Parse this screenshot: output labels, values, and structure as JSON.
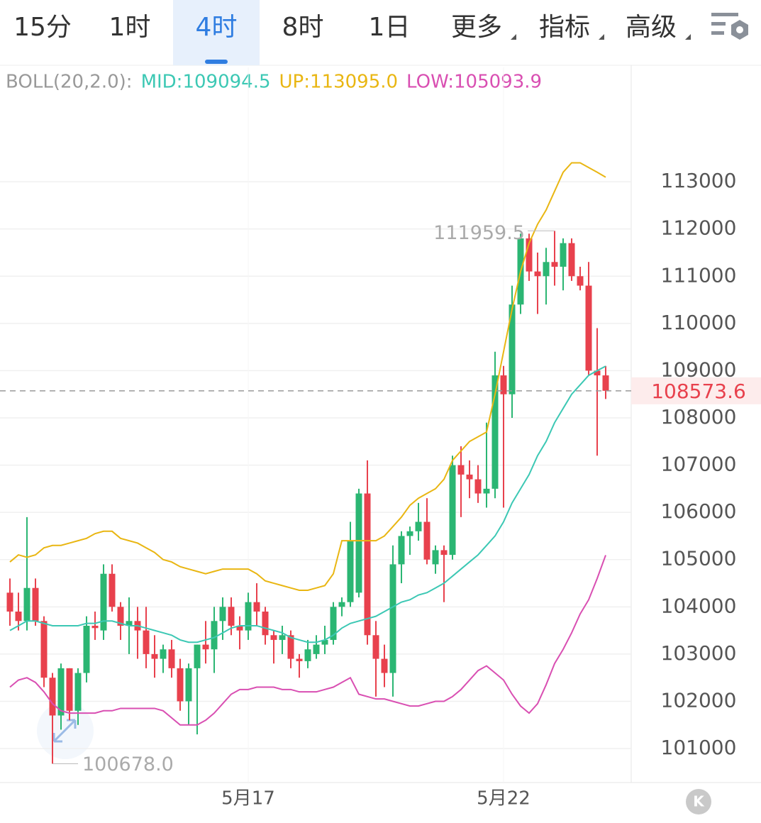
{
  "tabs": [
    "15分",
    "1时",
    "4时",
    "8时",
    "1日",
    "更多",
    "指标",
    "高级"
  ],
  "selected_tab": "4时",
  "k_button": "K",
  "chart_data": {
    "type": "candlestick",
    "indicator_title": "BOLL(20,2.0):",
    "categories": [
      null,
      null,
      null,
      null,
      null,
      null,
      null,
      null,
      null,
      null,
      null,
      null,
      null,
      null,
      null,
      null,
      null,
      null,
      null,
      null,
      null,
      null,
      null,
      null,
      null,
      null,
      null,
      null,
      "5月17",
      null,
      null,
      null,
      null,
      null,
      null,
      null,
      null,
      null,
      null,
      null,
      null,
      null,
      null,
      null,
      null,
      null,
      null,
      null,
      null,
      null,
      null,
      null,
      null,
      null,
      null,
      null,
      null,
      null,
      "5月22",
      null,
      null,
      null,
      null,
      null,
      null,
      null,
      null,
      null,
      null,
      null,
      null
    ],
    "open": [
      104300,
      103900,
      103700,
      104400,
      103700,
      102500,
      101700,
      102700,
      101800,
      102600,
      103600,
      103500,
      104700,
      104000,
      103600,
      103700,
      103500,
      103000,
      102900,
      103100,
      102700,
      102000,
      102700,
      103200,
      103100,
      103700,
      104000,
      103600,
      103500,
      104100,
      103900,
      103400,
      103300,
      103400,
      102900,
      102850,
      103000,
      103200,
      103300,
      104000,
      104100,
      104300,
      106400,
      103400,
      102900,
      102600,
      104900,
      105500,
      105600,
      105800,
      104900,
      105200,
      105100,
      107000,
      106800,
      106700,
      106400,
      106500,
      108900,
      108500,
      110400,
      111800,
      111100,
      111000,
      111300,
      111200,
      111700,
      111000,
      110800,
      109000,
      108900
    ],
    "high": [
      104600,
      104300,
      105900,
      104600,
      103800,
      102600,
      102800,
      102700,
      102700,
      103800,
      103900,
      104900,
      104900,
      104100,
      104200,
      104000,
      104000,
      103400,
      103200,
      103300,
      102900,
      102800,
      103200,
      103700,
      104000,
      104200,
      104200,
      103800,
      104300,
      104500,
      104000,
      103500,
      103600,
      103500,
      103000,
      103300,
      103400,
      103600,
      104100,
      104200,
      105800,
      106500,
      107100,
      103700,
      103200,
      105300,
      105600,
      105700,
      106200,
      106300,
      105300,
      105300,
      107200,
      107400,
      107100,
      107000,
      107900,
      109400,
      109100,
      110800,
      111900,
      111900,
      111500,
      111600,
      111959.5,
      111800,
      111800,
      111200,
      111300,
      109900,
      109100
    ],
    "low": [
      103600,
      103500,
      103500,
      103600,
      102300,
      100678.0,
      101400,
      101600,
      101500,
      102400,
      103300,
      103300,
      103900,
      103300,
      103000,
      102900,
      102700,
      102500,
      102600,
      102500,
      101800,
      101500,
      101300,
      102800,
      102600,
      103300,
      103400,
      103100,
      103300,
      103600,
      103200,
      102800,
      103000,
      102700,
      102500,
      102700,
      102900,
      103000,
      103200,
      103800,
      104000,
      104200,
      103200,
      102100,
      102300,
      102100,
      104500,
      105100,
      105400,
      104900,
      104700,
      104100,
      105000,
      105900,
      106300,
      106200,
      106100,
      106300,
      106100,
      108000,
      110200,
      110900,
      110200,
      110400,
      110800,
      110700,
      110900,
      110700,
      108900,
      107200,
      108400
    ],
    "close": [
      103900,
      103700,
      104400,
      103700,
      102500,
      101700,
      102700,
      101800,
      102600,
      103600,
      103550,
      104700,
      104000,
      103600,
      103700,
      103500,
      103000,
      102900,
      103100,
      102700,
      102000,
      102700,
      103200,
      103100,
      103700,
      104000,
      103600,
      103500,
      104100,
      103900,
      103400,
      103300,
      103400,
      102900,
      102850,
      103100,
      103200,
      103300,
      104000,
      104100,
      105400,
      106400,
      103400,
      102900,
      102600,
      104900,
      105500,
      105600,
      105800,
      105000,
      105200,
      105100,
      107000,
      106800,
      106700,
      106400,
      106500,
      108900,
      108500,
      110400,
      111800,
      111100,
      111000,
      111300,
      111200,
      111700,
      111000,
      110800,
      109000,
      108900,
      108573.6
    ],
    "up_color": "#2bb673",
    "down_color": "#e8414d",
    "max_label": "111959.5",
    "min_label": "100678.0",
    "last_price": 108573.6,
    "boll": [
      {
        "name": "MID",
        "label": "MID:109094.5",
        "color": "#3cc8b4",
        "values": [
          103500,
          103600,
          103700,
          103700,
          103650,
          103600,
          103600,
          103600,
          103600,
          103650,
          103650,
          103700,
          103700,
          103650,
          103600,
          103600,
          103550,
          103500,
          103450,
          103400,
          103300,
          103250,
          103250,
          103300,
          103350,
          103450,
          103550,
          103600,
          103600,
          103600,
          103550,
          103500,
          103450,
          103350,
          103300,
          103250,
          103250,
          103300,
          103400,
          103550,
          103650,
          103700,
          103750,
          103800,
          103900,
          104000,
          104100,
          104150,
          104250,
          104300,
          104400,
          104500,
          104650,
          104800,
          104950,
          105100,
          105300,
          105500,
          105800,
          106200,
          106500,
          106800,
          107200,
          107500,
          107900,
          108200,
          108500,
          108700,
          108900,
          109000,
          109094.5
        ]
      },
      {
        "name": "UP",
        "label": "UP:113095.0",
        "color": "#e9b612",
        "values": [
          104950,
          105100,
          105050,
          105100,
          105250,
          105300,
          105300,
          105350,
          105400,
          105450,
          105550,
          105600,
          105600,
          105450,
          105400,
          105350,
          105250,
          105150,
          105000,
          104950,
          104850,
          104800,
          104750,
          104700,
          104750,
          104800,
          104800,
          104800,
          104800,
          104700,
          104550,
          104500,
          104450,
          104400,
          104350,
          104350,
          104400,
          104450,
          104700,
          105400,
          105400,
          105400,
          105400,
          105400,
          105500,
          105700,
          105900,
          106150,
          106300,
          106400,
          106500,
          106700,
          107100,
          107300,
          107500,
          107600,
          107700,
          108500,
          109400,
          110300,
          111100,
          111700,
          112100,
          112400,
          112800,
          113200,
          113400,
          113400,
          113300,
          113200,
          113095.0
        ]
      },
      {
        "name": "LOW",
        "label": "LOW:105093.9",
        "color": "#d94fb2",
        "values": [
          102300,
          102450,
          102500,
          102400,
          102200,
          101950,
          101800,
          101750,
          101750,
          101750,
          101750,
          101800,
          101800,
          101850,
          101850,
          101850,
          101850,
          101850,
          101800,
          101650,
          101500,
          101500,
          101500,
          101600,
          101750,
          101950,
          102150,
          102250,
          102250,
          102300,
          102300,
          102300,
          102250,
          102250,
          102200,
          102200,
          102200,
          102250,
          102300,
          102400,
          102500,
          102150,
          102100,
          102050,
          102050,
          102000,
          101950,
          101900,
          101900,
          101950,
          102000,
          102000,
          102100,
          102250,
          102450,
          102650,
          102750,
          102600,
          102450,
          102150,
          101900,
          101750,
          101950,
          102350,
          102800,
          103100,
          103450,
          103850,
          104150,
          104600,
          105093.9
        ]
      }
    ],
    "ylim": [
      100280,
      115420
    ],
    "yticks": [
      101000,
      102000,
      103000,
      104000,
      105000,
      106000,
      107000,
      108000,
      109000,
      110000,
      111000,
      112000,
      113000
    ],
    "grid": true
  }
}
